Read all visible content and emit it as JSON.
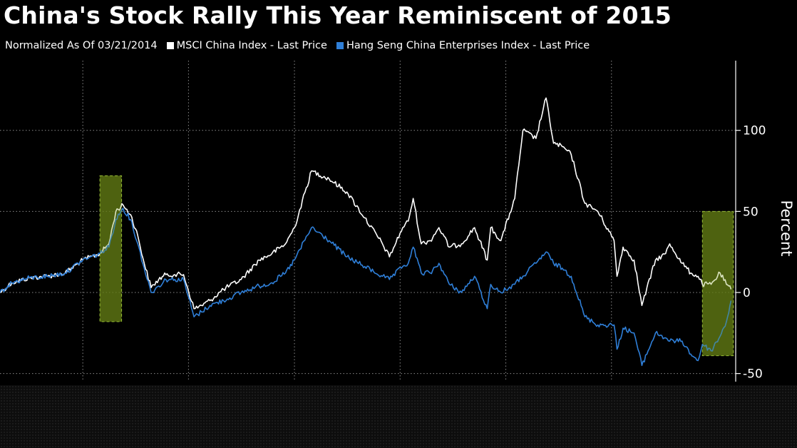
{
  "title": "China's Stock Rally This Year Reminiscent of 2015",
  "legend": {
    "subtitle": "Normalized As Of 03/21/2014",
    "items": [
      {
        "label": "MSCI China Index - Last Price",
        "color": "#ffffff"
      },
      {
        "label": "Hang Seng China Enterprises Index - Last Price",
        "color": "#2f7fd8"
      }
    ]
  },
  "chart_data": {
    "type": "line",
    "title": "China's Stock Rally This Year Reminiscent of 2015",
    "subtitle": "Normalized As Of 03/21/2014",
    "xlabel": "",
    "ylabel": "Percent",
    "xlim": [
      "2014-03-21",
      "2021-03-05"
    ],
    "ylim": [
      -55,
      143
    ],
    "yticks": [
      100,
      50,
      0,
      -50
    ],
    "ytick_labels": [
      "100",
      "50",
      "0",
      "-50"
    ],
    "y_axis_position": "right",
    "grid": true,
    "x_gridlines": [
      "2015-01-01",
      "2016-01-01",
      "2017-01-01",
      "2018-01-01",
      "2019-01-01",
      "2020-01-01"
    ],
    "legend_position": "top-left",
    "highlights": [
      {
        "x_start": "2015-03-01",
        "x_end": "2015-05-15",
        "y_low": -18,
        "y_high": 72,
        "color": "#556b12"
      },
      {
        "x_start": "2020-11-10",
        "x_end": "2021-02-25",
        "y_low": -39,
        "y_high": 50,
        "color": "#556b12"
      }
    ],
    "series": [
      {
        "name": "MSCI China Index - Last Price",
        "color": "#ffffff",
        "x": [
          "2014-03-21",
          "2014-05-01",
          "2014-07-01",
          "2014-09-01",
          "2014-11-01",
          "2015-01-01",
          "2015-03-01",
          "2015-04-01",
          "2015-04-25",
          "2015-05-20",
          "2015-06-15",
          "2015-07-10",
          "2015-08-01",
          "2015-08-25",
          "2015-09-20",
          "2015-10-15",
          "2015-11-15",
          "2015-12-15",
          "2016-01-20",
          "2016-02-15",
          "2016-03-15",
          "2016-05-01",
          "2016-07-01",
          "2016-09-01",
          "2016-10-15",
          "2016-12-01",
          "2017-01-01",
          "2017-03-01",
          "2017-05-01",
          "2017-07-01",
          "2017-09-01",
          "2017-11-01",
          "2017-11-25",
          "2018-01-10",
          "2018-01-29",
          "2018-02-15",
          "2018-03-15",
          "2018-04-15",
          "2018-05-15",
          "2018-06-20",
          "2018-08-01",
          "2018-09-15",
          "2018-10-29",
          "2018-11-10",
          "2018-12-15",
          "2019-02-01",
          "2019-03-01",
          "2019-04-15",
          "2019-05-20",
          "2019-06-15",
          "2019-07-15",
          "2019-08-15",
          "2019-10-01",
          "2019-11-15",
          "2020-01-10",
          "2020-01-20",
          "2020-02-10",
          "2020-03-19",
          "2020-04-15",
          "2020-06-01",
          "2020-07-06",
          "2020-07-20",
          "2020-09-01",
          "2020-10-01",
          "2020-10-26",
          "2020-11-10",
          "2020-12-10",
          "2021-01-10",
          "2021-02-01",
          "2021-02-17"
        ],
        "values": [
          0,
          6,
          9,
          10,
          12,
          20,
          24,
          30,
          50,
          54,
          48,
          35,
          18,
          3,
          8,
          11,
          11,
          11,
          -10,
          -8,
          -5,
          2,
          8,
          20,
          24,
          30,
          40,
          75,
          70,
          62,
          46,
          30,
          22,
          40,
          44,
          58,
          30,
          32,
          40,
          28,
          30,
          40,
          20,
          40,
          32,
          58,
          100,
          95,
          120,
          92,
          90,
          85,
          55,
          50,
          32,
          10,
          28,
          20,
          -8,
          20,
          24,
          30,
          18,
          12,
          10,
          5,
          5,
          12,
          5,
          2
        ]
      },
      {
        "name": "Hang Seng China Enterprises Index - Last Price",
        "color": "#2f7fd8",
        "x": [
          "2014-03-21",
          "2014-05-01",
          "2014-07-01",
          "2014-09-01",
          "2014-11-01",
          "2015-01-01",
          "2015-03-01",
          "2015-04-01",
          "2015-04-25",
          "2015-05-20",
          "2015-06-15",
          "2015-07-10",
          "2015-08-01",
          "2015-08-25",
          "2015-09-20",
          "2015-10-15",
          "2015-11-15",
          "2015-12-15",
          "2016-01-20",
          "2016-02-15",
          "2016-03-15",
          "2016-05-01",
          "2016-07-01",
          "2016-09-01",
          "2016-10-15",
          "2016-12-01",
          "2017-01-01",
          "2017-03-01",
          "2017-05-01",
          "2017-07-01",
          "2017-09-01",
          "2017-11-01",
          "2017-11-25",
          "2018-01-10",
          "2018-01-29",
          "2018-02-15",
          "2018-03-15",
          "2018-04-15",
          "2018-05-15",
          "2018-06-20",
          "2018-08-01",
          "2018-09-15",
          "2018-10-29",
          "2018-11-10",
          "2018-12-15",
          "2019-02-01",
          "2019-03-01",
          "2019-04-15",
          "2019-05-20",
          "2019-06-15",
          "2019-07-15",
          "2019-08-15",
          "2019-10-01",
          "2019-11-15",
          "2020-01-10",
          "2020-01-20",
          "2020-02-10",
          "2020-03-19",
          "2020-04-15",
          "2020-06-01",
          "2020-07-06",
          "2020-07-20",
          "2020-09-01",
          "2020-10-01",
          "2020-10-26",
          "2020-11-10",
          "2020-12-10",
          "2021-01-10",
          "2021-02-01",
          "2021-02-17"
        ],
        "values": [
          0,
          6,
          9,
          10,
          12,
          20,
          24,
          28,
          45,
          52,
          45,
          30,
          15,
          0,
          4,
          8,
          8,
          8,
          -15,
          -12,
          -8,
          -5,
          0,
          4,
          6,
          12,
          20,
          40,
          32,
          22,
          16,
          10,
          8,
          16,
          18,
          28,
          12,
          12,
          18,
          5,
          0,
          10,
          -10,
          5,
          0,
          5,
          10,
          18,
          25,
          18,
          15,
          10,
          -15,
          -20,
          -20,
          -35,
          -22,
          -25,
          -45,
          -25,
          -28,
          -30,
          -30,
          -38,
          -42,
          -32,
          -36,
          -27,
          -18,
          -5
        ]
      }
    ]
  }
}
